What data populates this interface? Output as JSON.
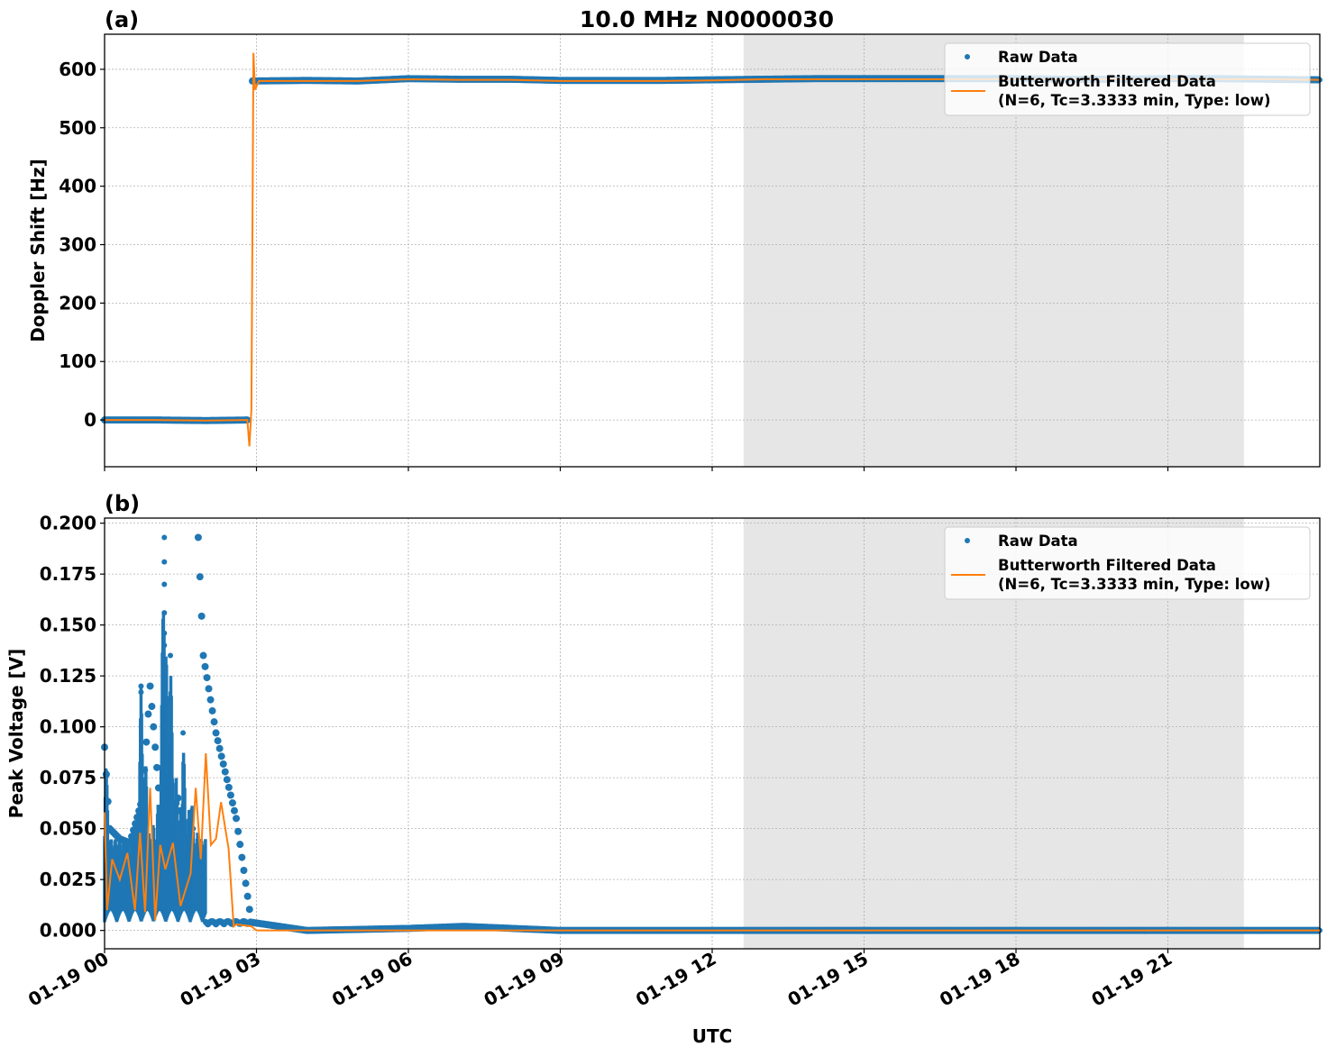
{
  "figure": {
    "title": "10.0 MHz N0000030",
    "xlabel": "UTC",
    "xticks": [
      "01-19 00",
      "01-19 03",
      "01-19 06",
      "01-19 09",
      "01-19 12",
      "01-19 15",
      "01-19 18",
      "01-19 21"
    ],
    "xtick_hours": [
      0,
      3,
      6,
      9,
      12,
      15,
      18,
      21
    ],
    "shaded_region_hours": [
      12.62,
      22.5
    ],
    "colors": {
      "raw": "#1f77b4",
      "filtered": "#ff7f0e",
      "shade": "#e6e6e6"
    }
  },
  "legend": {
    "raw_label": "Raw Data",
    "filtered_label_line1": "Butterworth Filtered Data",
    "filtered_label_line2": "(N=6, Tc=3.3333 min, Type: low)"
  },
  "panels": {
    "a": {
      "label": "(a)",
      "ylabel": "Doppler Shift [Hz]",
      "yticks": [
        "0",
        "100",
        "200",
        "300",
        "400",
        "500",
        "600"
      ]
    },
    "b": {
      "label": "(b)",
      "ylabel": "Peak Voltage [V]",
      "yticks": [
        "0.000",
        "0.025",
        "0.050",
        "0.075",
        "0.100",
        "0.125",
        "0.150",
        "0.175",
        "0.200"
      ]
    }
  },
  "chart_data": [
    {
      "type": "line",
      "title": "10.0 MHz N0000030",
      "panel": "(a)",
      "xlabel": "UTC",
      "ylabel": "Doppler Shift [Hz]",
      "xlim_hours": [
        0,
        24
      ],
      "ylim": [
        -80,
        660
      ],
      "grid": true,
      "legend_position": "upper right",
      "shaded_x_hours": [
        12.62,
        22.5
      ],
      "series": [
        {
          "name": "Raw Data",
          "style": "scatter",
          "x_hours": [
            0,
            1,
            2,
            2.85,
            2.92,
            4,
            5,
            6,
            7,
            8,
            9,
            10,
            11,
            12,
            13,
            14,
            15,
            16,
            17,
            18,
            19,
            20,
            21,
            22,
            23,
            24
          ],
          "values": [
            0,
            0,
            -1,
            0,
            580,
            581,
            580,
            584,
            583,
            583,
            581,
            581,
            581,
            582,
            583,
            584,
            584,
            584,
            584,
            584,
            583,
            583,
            584,
            584,
            583,
            582
          ]
        },
        {
          "name": "Butterworth Filtered Data (N=6, Tc=3.3333 min, Type: low)",
          "style": "line",
          "x_hours": [
            0,
            1,
            2,
            2.82,
            2.86,
            2.9,
            2.94,
            2.97,
            3.05,
            4,
            5,
            6,
            7,
            8,
            9,
            10,
            11,
            12,
            13,
            14,
            15,
            16,
            17,
            18,
            19,
            20,
            21,
            22,
            23,
            24
          ],
          "values": [
            0,
            0,
            -1,
            0,
            -45,
            18,
            628,
            565,
            580,
            580,
            580,
            583,
            582,
            582,
            580,
            580,
            580,
            581,
            583,
            583,
            583,
            583,
            583,
            583,
            583,
            583,
            583,
            583,
            583,
            582
          ]
        }
      ]
    },
    {
      "type": "line",
      "panel": "(b)",
      "xlabel": "UTC",
      "ylabel": "Peak Voltage [V]",
      "xlim_hours": [
        0,
        24
      ],
      "ylim": [
        -0.009,
        0.2025
      ],
      "grid": true,
      "legend_position": "upper right",
      "shaded_x_hours": [
        12.62,
        22.5
      ],
      "series": [
        {
          "name": "Raw Data",
          "style": "scatter",
          "x_hours": [
            0,
            0.1,
            0.3,
            0.5,
            0.75,
            0.9,
            1.1,
            1.3,
            1.45,
            1.6,
            1.75,
            1.85,
            1.95,
            2.2,
            2.6,
            2.9,
            4,
            6,
            7.1,
            9,
            12,
            15,
            18,
            21,
            24
          ],
          "values": [
            0.09,
            0.05,
            0.045,
            0.043,
            0.065,
            0.12,
            0.06,
            0.055,
            0.065,
            0.04,
            0.05,
            0.193,
            0.135,
            0.097,
            0.055,
            0.004,
            0.0,
            0.001,
            0.002,
            0.0,
            0.0,
            0.0,
            0.0,
            0.0,
            0.0
          ]
        },
        {
          "name": "Butterworth Filtered Data (N=6, Tc=3.3333 min, Type: low)",
          "style": "line",
          "x_hours": [
            0,
            0.05,
            0.15,
            0.3,
            0.45,
            0.6,
            0.7,
            0.8,
            0.9,
            1.0,
            1.1,
            1.2,
            1.35,
            1.5,
            1.6,
            1.7,
            1.8,
            1.9,
            2.0,
            2.1,
            2.2,
            2.3,
            2.45,
            2.55,
            2.6,
            2.9,
            3.0,
            24
          ],
          "values": [
            0.058,
            0.01,
            0.035,
            0.025,
            0.038,
            0.01,
            0.048,
            0.009,
            0.07,
            0.005,
            0.042,
            0.03,
            0.043,
            0.012,
            0.02,
            0.028,
            0.07,
            0.035,
            0.087,
            0.042,
            0.045,
            0.063,
            0.04,
            0.002,
            0.003,
            0.002,
            0.0,
            0.0
          ]
        }
      ]
    }
  ]
}
